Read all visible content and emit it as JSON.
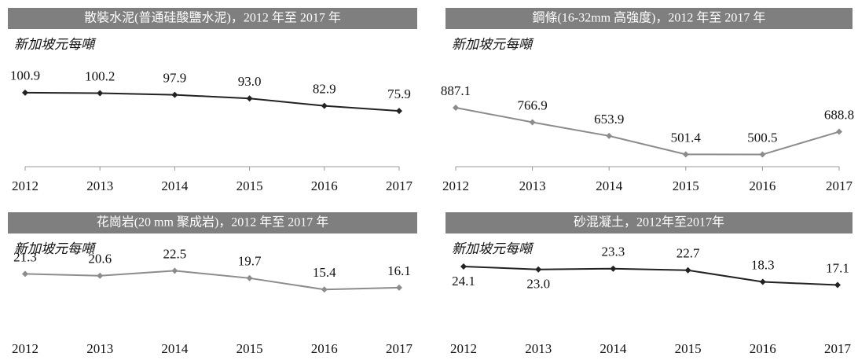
{
  "chart_data": [
    {
      "type": "line",
      "title": "散裝水泥(普通硅酸鹽水泥)，2012 年至 2017 年",
      "subtitle": "新加坡元每噸",
      "categories": [
        "2012",
        "2013",
        "2014",
        "2015",
        "2016",
        "2017"
      ],
      "series": [
        {
          "color": "#222222",
          "values": [
            100.9,
            100.2,
            97.9,
            93,
            82.9,
            75.9
          ],
          "value_labels": [
            "100.9",
            "100.2",
            "97.9",
            "93.0",
            "82.9",
            "75.9"
          ]
        }
      ],
      "ylim": [
        0,
        120
      ]
    },
    {
      "type": "line",
      "title": "鋼條(16-32mm 高強度)，2012 年至 2017 年",
      "subtitle": "新加坡元每噸",
      "categories": [
        "2012",
        "2013",
        "2014",
        "2015",
        "2016",
        "2017"
      ],
      "series": [
        {
          "color": "#8c8c8c",
          "values": [
            887.1,
            766.9,
            653.9,
            501.4,
            500.5,
            688.8
          ],
          "value_labels": [
            "887.1",
            "766.9",
            "653.9",
            "501.4",
            "500.5",
            "688.8"
          ]
        }
      ],
      "ylim": [
        400,
        900
      ]
    },
    {
      "type": "line",
      "title": "花崗岩(20 mm 聚成岩)，2012 年至 2017 年",
      "subtitle": "新加坡元每噸",
      "categories": [
        "2012",
        "2013",
        "2014",
        "2015",
        "2016",
        "2017"
      ],
      "series": [
        {
          "color": "#8c8c8c",
          "values": [
            21.3,
            20.6,
            22.5,
            19.7,
            15.4,
            16.1
          ],
          "value_labels": [
            "21.3",
            "20.6",
            "22.5",
            "19.7",
            "15.4",
            "16.1"
          ]
        }
      ],
      "ylim": [
        0,
        25
      ]
    },
    {
      "type": "line",
      "title": "砂混凝土，2012年至2017年",
      "subtitle": "新加坡元每噸",
      "categories": [
        "2012",
        "2013",
        "2014",
        "2015",
        "2016",
        "2017"
      ],
      "series": [
        {
          "color": "#222222",
          "values": [
            24.1,
            23,
            23.3,
            22.7,
            18.3,
            17.1
          ],
          "value_labels": [
            "24.1",
            "23.0",
            "23.3",
            "22.7",
            "18.3",
            "17.1"
          ]
        }
      ],
      "ylim": [
        0,
        25
      ]
    }
  ]
}
